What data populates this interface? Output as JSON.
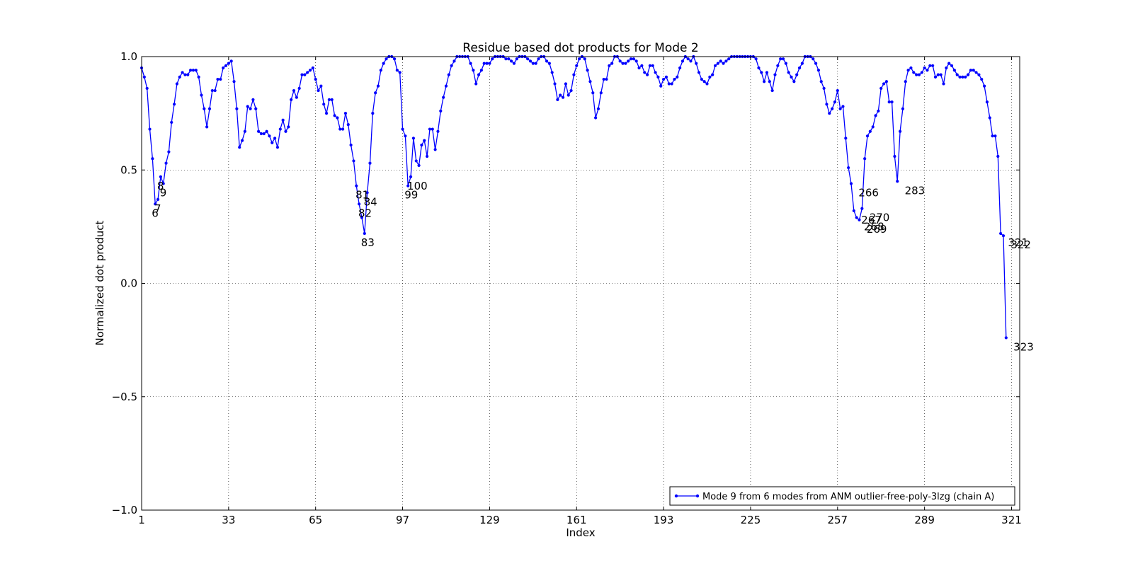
{
  "chart_data": {
    "type": "line",
    "title": "Residue based dot products for Mode 2",
    "xlabel": "Index",
    "ylabel": "Normalized dot product",
    "xlim": [
      1,
      324
    ],
    "ylim": [
      -1.0,
      1.0
    ],
    "x_ticks": [
      1,
      33,
      65,
      97,
      129,
      161,
      193,
      225,
      257,
      289,
      321
    ],
    "x_tick_labels": [
      "1",
      "33",
      "65",
      "97",
      "129",
      "161",
      "193",
      "225",
      "257",
      "289",
      "321"
    ],
    "y_ticks": [
      -1.0,
      -0.5,
      0.0,
      0.5,
      1.0
    ],
    "y_tick_labels": [
      "−1.0",
      "−0.5",
      "0.0",
      "0.5",
      "1.0"
    ],
    "grid": true,
    "legend_position": "lower-right",
    "series_color": "#0000ff",
    "series": [
      {
        "name": "Mode 9 from 6 modes from ANM outlier-free-poly-3lzg (chain A)",
        "x_start": 1,
        "values": [
          0.95,
          0.91,
          0.86,
          0.68,
          0.55,
          0.35,
          0.37,
          0.47,
          0.44,
          0.53,
          0.58,
          0.71,
          0.79,
          0.88,
          0.91,
          0.93,
          0.92,
          0.92,
          0.94,
          0.94,
          0.94,
          0.91,
          0.83,
          0.77,
          0.69,
          0.77,
          0.85,
          0.85,
          0.9,
          0.9,
          0.95,
          0.96,
          0.97,
          0.98,
          0.89,
          0.77,
          0.6,
          0.63,
          0.67,
          0.78,
          0.77,
          0.81,
          0.77,
          0.67,
          0.66,
          0.66,
          0.67,
          0.65,
          0.62,
          0.64,
          0.6,
          0.68,
          0.72,
          0.67,
          0.69,
          0.81,
          0.85,
          0.82,
          0.86,
          0.92,
          0.92,
          0.93,
          0.94,
          0.95,
          0.9,
          0.85,
          0.87,
          0.79,
          0.75,
          0.81,
          0.81,
          0.74,
          0.73,
          0.68,
          0.68,
          0.75,
          0.7,
          0.61,
          0.54,
          0.43,
          0.35,
          0.29,
          0.22,
          0.4,
          0.53,
          0.75,
          0.84,
          0.87,
          0.94,
          0.97,
          0.99,
          1.0,
          1.0,
          0.99,
          0.94,
          0.93,
          0.68,
          0.65,
          0.43,
          0.47,
          0.64,
          0.54,
          0.52,
          0.61,
          0.63,
          0.56,
          0.68,
          0.68,
          0.59,
          0.67,
          0.76,
          0.82,
          0.87,
          0.92,
          0.96,
          0.98,
          1.0,
          1.0,
          1.0,
          1.0,
          1.0,
          0.97,
          0.94,
          0.88,
          0.92,
          0.94,
          0.97,
          0.97,
          0.97,
          0.99,
          1.0,
          1.0,
          1.0,
          1.0,
          0.99,
          0.99,
          0.98,
          0.97,
          0.99,
          1.0,
          1.0,
          1.0,
          0.99,
          0.98,
          0.97,
          0.97,
          0.99,
          1.0,
          1.0,
          0.98,
          0.97,
          0.93,
          0.88,
          0.81,
          0.83,
          0.82,
          0.88,
          0.83,
          0.85,
          0.92,
          0.96,
          0.99,
          1.0,
          0.99,
          0.94,
          0.89,
          0.84,
          0.73,
          0.77,
          0.84,
          0.9,
          0.9,
          0.96,
          0.97,
          1.0,
          1.0,
          0.98,
          0.97,
          0.97,
          0.98,
          0.99,
          0.99,
          0.98,
          0.95,
          0.96,
          0.93,
          0.92,
          0.96,
          0.96,
          0.93,
          0.91,
          0.87,
          0.9,
          0.91,
          0.88,
          0.88,
          0.9,
          0.91,
          0.95,
          0.98,
          1.0,
          0.99,
          0.98,
          1.0,
          0.97,
          0.93,
          0.9,
          0.89,
          0.88,
          0.91,
          0.92,
          0.96,
          0.97,
          0.98,
          0.97,
          0.98,
          0.99,
          1.0,
          1.0,
          1.0,
          1.0,
          1.0,
          1.0,
          1.0,
          1.0,
          1.0,
          0.99,
          0.95,
          0.93,
          0.89,
          0.93,
          0.89,
          0.85,
          0.92,
          0.96,
          0.99,
          0.99,
          0.97,
          0.93,
          0.91,
          0.89,
          0.92,
          0.95,
          0.97,
          1.0,
          1.0,
          1.0,
          0.99,
          0.97,
          0.94,
          0.89,
          0.86,
          0.79,
          0.75,
          0.77,
          0.8,
          0.85,
          0.77,
          0.78,
          0.64,
          0.51,
          0.44,
          0.32,
          0.29,
          0.28,
          0.33,
          0.55,
          0.65,
          0.67,
          0.69,
          0.74,
          0.76,
          0.86,
          0.88,
          0.89,
          0.8,
          0.8,
          0.56,
          0.45,
          0.67,
          0.77,
          0.89,
          0.94,
          0.95,
          0.93,
          0.92,
          0.92,
          0.93,
          0.95,
          0.94,
          0.96,
          0.96,
          0.91,
          0.92,
          0.92,
          0.88,
          0.95,
          0.97,
          0.96,
          0.94,
          0.92,
          0.91,
          0.91,
          0.91,
          0.92,
          0.94,
          0.94,
          0.93,
          0.92,
          0.9,
          0.87,
          0.8,
          0.73,
          0.65,
          0.65,
          0.56,
          0.22,
          0.21,
          -0.24
        ]
      }
    ],
    "annotations": [
      {
        "label": "6",
        "x": 6,
        "y": 0.35
      },
      {
        "label": "7",
        "x": 7,
        "y": 0.37
      },
      {
        "label": "8",
        "x": 8,
        "y": 0.47
      },
      {
        "label": "9",
        "x": 9,
        "y": 0.44
      },
      {
        "label": "81",
        "x": 81,
        "y": 0.43
      },
      {
        "label": "82",
        "x": 82,
        "y": 0.35
      },
      {
        "label": "83",
        "x": 83,
        "y": 0.22
      },
      {
        "label": "84",
        "x": 84,
        "y": 0.4
      },
      {
        "label": "99",
        "x": 99,
        "y": 0.43
      },
      {
        "label": "100",
        "x": 100,
        "y": 0.47
      },
      {
        "label": "266",
        "x": 266,
        "y": 0.44
      },
      {
        "label": "267",
        "x": 267,
        "y": 0.32
      },
      {
        "label": "268",
        "x": 268,
        "y": 0.29
      },
      {
        "label": "269",
        "x": 269,
        "y": 0.28
      },
      {
        "label": "270",
        "x": 270,
        "y": 0.33
      },
      {
        "label": "283",
        "x": 283,
        "y": 0.45
      },
      {
        "label": "321",
        "x": 321,
        "y": 0.22
      },
      {
        "label": "322",
        "x": 322,
        "y": 0.21
      },
      {
        "label": "323",
        "x": 323,
        "y": -0.24
      }
    ]
  }
}
